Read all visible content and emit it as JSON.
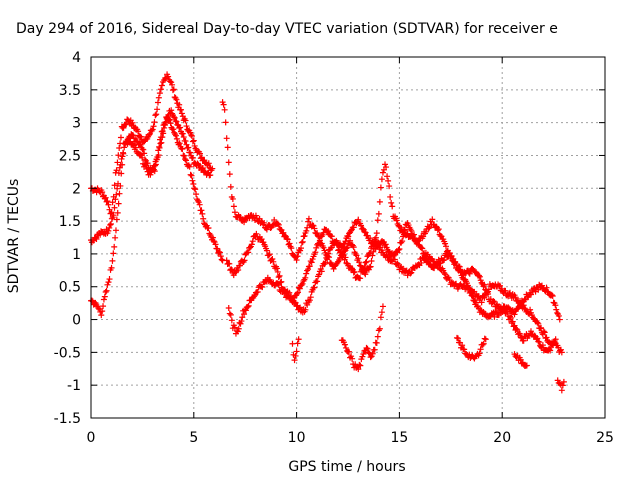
{
  "chart_data": {
    "type": "scatter",
    "title": "Day 294 of 2016, Sidereal Day-to-day VTEC variation (SDTVAR) for receiver e",
    "xlabel": "GPS time / hours",
    "ylabel": "SDTVAR / TECUs",
    "xlim": [
      0,
      25
    ],
    "ylim": [
      -1.5,
      4
    ],
    "xticks": [
      "0",
      "5",
      "10",
      "15",
      "20",
      "25"
    ],
    "yticks": [
      "-1.5",
      "-1",
      "-0.5",
      "0",
      "0.5",
      "1",
      "1.5",
      "2",
      "2.5",
      "3",
      "3.5",
      "4"
    ],
    "grid": true,
    "marker": "+",
    "color": "#ff0000",
    "series": [
      {
        "name": "",
        "traces": [
          [
            [
              0.0,
              2.0
            ],
            [
              0.5,
              1.95
            ],
            [
              0.8,
              1.8
            ],
            [
              1.0,
              1.6
            ],
            [
              1.2,
              2.2
            ],
            [
              1.5,
              2.9
            ],
            [
              1.8,
              3.05
            ],
            [
              2.2,
              2.9
            ],
            [
              2.6,
              2.7
            ],
            [
              3.0,
              2.9
            ],
            [
              3.3,
              3.35
            ],
            [
              3.5,
              3.6
            ],
            [
              3.7,
              3.75
            ],
            [
              3.9,
              3.6
            ],
            [
              4.2,
              3.3
            ],
            [
              4.6,
              3.0
            ],
            [
              5.0,
              2.7
            ],
            [
              5.3,
              2.5
            ],
            [
              5.6,
              2.4
            ],
            [
              5.9,
              2.3
            ]
          ],
          [
            [
              0.0,
              1.2
            ],
            [
              0.4,
              1.3
            ],
            [
              0.8,
              1.35
            ],
            [
              1.1,
              1.6
            ],
            [
              1.4,
              2.3
            ],
            [
              1.7,
              2.7
            ],
            [
              2.0,
              2.8
            ],
            [
              2.5,
              2.6
            ],
            [
              2.8,
              2.3
            ],
            [
              3.1,
              2.3
            ],
            [
              3.4,
              2.8
            ],
            [
              3.7,
              3.1
            ],
            [
              4.0,
              2.9
            ],
            [
              4.4,
              2.6
            ],
            [
              4.8,
              2.3
            ],
            [
              5.2,
              1.8
            ],
            [
              5.5,
              1.5
            ],
            [
              5.8,
              1.3
            ],
            [
              6.1,
              1.1
            ],
            [
              6.4,
              0.9
            ]
          ],
          [
            [
              0.0,
              0.3
            ],
            [
              0.3,
              0.2
            ],
            [
              0.5,
              0.1
            ],
            [
              0.8,
              0.5
            ],
            [
              1.0,
              0.8
            ],
            [
              1.3,
              1.6
            ],
            [
              1.6,
              2.7
            ],
            [
              2.0,
              2.7
            ],
            [
              2.4,
              2.5
            ],
            [
              2.8,
              2.2
            ],
            [
              3.2,
              2.4
            ],
            [
              3.6,
              3.0
            ],
            [
              3.9,
              3.2
            ],
            [
              4.2,
              3.0
            ],
            [
              4.6,
              2.7
            ],
            [
              5.0,
              2.4
            ],
            [
              5.4,
              2.3
            ],
            [
              5.8,
              2.2
            ]
          ],
          [
            [
              6.4,
              3.35
            ],
            [
              6.5,
              3.2
            ],
            [
              6.6,
              2.8
            ],
            [
              6.8,
              2.0
            ],
            [
              7.0,
              1.6
            ],
            [
              7.4,
              1.5
            ],
            [
              7.8,
              1.6
            ],
            [
              8.2,
              1.5
            ],
            [
              8.6,
              1.4
            ],
            [
              9.0,
              1.5
            ],
            [
              9.4,
              1.3
            ],
            [
              9.7,
              1.1
            ],
            [
              10.0,
              0.9
            ],
            [
              10.3,
              1.2
            ],
            [
              10.6,
              1.5
            ],
            [
              11.0,
              1.3
            ],
            [
              11.4,
              1.0
            ],
            [
              11.8,
              0.8
            ],
            [
              12.2,
              1.0
            ],
            [
              12.6,
              1.2
            ],
            [
              13.0,
              0.9
            ],
            [
              13.3,
              0.7
            ],
            [
              13.6,
              0.8
            ],
            [
              13.9,
              1.3
            ],
            [
              14.1,
              2.0
            ],
            [
              14.3,
              2.4
            ],
            [
              14.5,
              2.0
            ],
            [
              14.7,
              1.6
            ],
            [
              15.0,
              1.4
            ],
            [
              15.4,
              1.3
            ],
            [
              15.8,
              1.2
            ],
            [
              16.2,
              1.3
            ],
            [
              16.6,
              1.5
            ],
            [
              17.0,
              1.3
            ],
            [
              17.4,
              1.0
            ],
            [
              17.8,
              0.8
            ],
            [
              18.2,
              0.6
            ],
            [
              18.6,
              0.3
            ],
            [
              19.0,
              0.1
            ],
            [
              19.4,
              0.05
            ],
            [
              19.8,
              0.1
            ],
            [
              20.2,
              0.2
            ],
            [
              20.6,
              0.1
            ],
            [
              21.0,
              0.3
            ],
            [
              21.4,
              0.4
            ],
            [
              21.8,
              0.5
            ],
            [
              22.2,
              0.45
            ],
            [
              22.5,
              0.3
            ],
            [
              22.8,
              0.0
            ]
          ],
          [
            [
              6.6,
              0.9
            ],
            [
              6.9,
              0.7
            ],
            [
              7.2,
              0.8
            ],
            [
              7.6,
              1.0
            ],
            [
              8.0,
              1.3
            ],
            [
              8.3,
              1.2
            ],
            [
              8.6,
              1.0
            ],
            [
              9.0,
              0.8
            ],
            [
              9.3,
              0.5
            ],
            [
              9.6,
              0.4
            ],
            [
              10.0,
              0.2
            ],
            [
              10.3,
              0.1
            ],
            [
              10.6,
              0.3
            ],
            [
              11.0,
              0.6
            ],
            [
              11.4,
              0.9
            ],
            [
              11.8,
              1.2
            ],
            [
              12.2,
              1.0
            ],
            [
              12.6,
              0.8
            ],
            [
              13.0,
              0.6
            ],
            [
              13.4,
              0.9
            ],
            [
              13.8,
              1.2
            ],
            [
              14.2,
              1.0
            ],
            [
              14.6,
              0.9
            ],
            [
              15.0,
              1.1
            ],
            [
              15.4,
              1.5
            ],
            [
              15.8,
              1.2
            ],
            [
              16.2,
              1.0
            ],
            [
              16.6,
              0.9
            ],
            [
              17.0,
              0.8
            ],
            [
              17.4,
              0.6
            ],
            [
              17.8,
              0.5
            ],
            [
              18.2,
              0.5
            ],
            [
              18.6,
              0.4
            ],
            [
              19.0,
              0.3
            ],
            [
              19.4,
              0.5
            ],
            [
              19.8,
              0.5
            ],
            [
              20.2,
              0.4
            ],
            [
              20.6,
              0.35
            ],
            [
              21.0,
              0.2
            ],
            [
              21.4,
              0.1
            ],
            [
              21.8,
              -0.1
            ],
            [
              22.2,
              -0.3
            ],
            [
              22.6,
              -0.4
            ],
            [
              22.9,
              -0.5
            ]
          ],
          [
            [
              6.7,
              0.2
            ],
            [
              6.9,
              -0.1
            ],
            [
              7.1,
              -0.2
            ],
            [
              7.4,
              0.1
            ],
            [
              7.8,
              0.3
            ],
            [
              8.2,
              0.5
            ],
            [
              8.6,
              0.6
            ],
            [
              9.0,
              0.55
            ],
            [
              9.4,
              0.4
            ],
            [
              9.8,
              0.3
            ],
            [
              10.2,
              0.5
            ],
            [
              10.6,
              0.8
            ],
            [
              11.0,
              1.1
            ],
            [
              11.4,
              1.4
            ],
            [
              11.8,
              1.2
            ],
            [
              12.2,
              1.1
            ],
            [
              12.6,
              1.35
            ],
            [
              13.0,
              1.5
            ],
            [
              13.4,
              1.3
            ],
            [
              13.8,
              1.1
            ],
            [
              14.2,
              1.2
            ],
            [
              14.6,
              1.0
            ],
            [
              15.0,
              0.8
            ],
            [
              15.4,
              0.7
            ],
            [
              15.8,
              0.8
            ],
            [
              16.2,
              0.95
            ],
            [
              16.6,
              0.8
            ],
            [
              17.0,
              0.9
            ],
            [
              17.4,
              1.0
            ],
            [
              17.8,
              0.8
            ],
            [
              18.2,
              0.7
            ],
            [
              18.6,
              0.75
            ],
            [
              19.0,
              0.6
            ],
            [
              19.4,
              0.3
            ],
            [
              19.8,
              0.2
            ],
            [
              20.2,
              0.1
            ],
            [
              20.6,
              -0.1
            ],
            [
              21.0,
              -0.3
            ],
            [
              21.4,
              -0.2
            ],
            [
              21.8,
              -0.35
            ],
            [
              22.2,
              -0.5
            ],
            [
              22.6,
              -0.3
            ]
          ],
          [
            [
              9.8,
              -0.4
            ],
            [
              9.9,
              -0.6
            ],
            [
              10.0,
              -0.5
            ],
            [
              10.1,
              -0.3
            ]
          ],
          [
            [
              12.2,
              -0.3
            ],
            [
              12.4,
              -0.45
            ],
            [
              12.6,
              -0.55
            ],
            [
              12.8,
              -0.7
            ],
            [
              13.0,
              -0.75
            ],
            [
              13.2,
              -0.6
            ],
            [
              13.4,
              -0.4
            ],
            [
              13.6,
              -0.55
            ],
            [
              13.8,
              -0.45
            ],
            [
              14.0,
              -0.2
            ],
            [
              14.2,
              0.2
            ]
          ],
          [
            [
              17.8,
              -0.3
            ],
            [
              18.0,
              -0.4
            ],
            [
              18.2,
              -0.5
            ],
            [
              18.4,
              -0.55
            ],
            [
              18.6,
              -0.6
            ],
            [
              18.8,
              -0.55
            ],
            [
              19.0,
              -0.4
            ],
            [
              19.2,
              -0.3
            ]
          ],
          [
            [
              20.6,
              -0.5
            ],
            [
              20.8,
              -0.6
            ],
            [
              21.0,
              -0.65
            ],
            [
              21.2,
              -0.7
            ]
          ],
          [
            [
              22.7,
              -0.95
            ],
            [
              22.8,
              -1.0
            ],
            [
              22.9,
              -1.05
            ],
            [
              23.0,
              -0.95
            ]
          ]
        ]
      }
    ]
  }
}
